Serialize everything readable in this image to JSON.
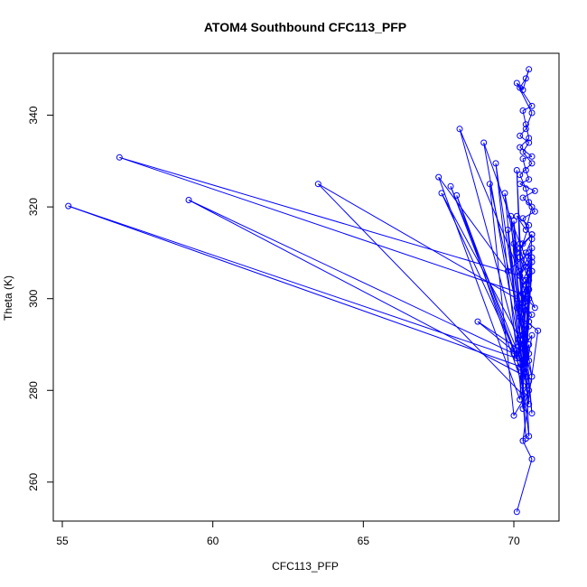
{
  "chart_data": {
    "type": "line",
    "title": "ATOM4 Southbound CFC113_PFP",
    "xlabel": "CFC113_PFP",
    "ylabel": "Theta (K)",
    "xlim": [
      54.7,
      71.5
    ],
    "ylim": [
      251.5,
      353.5
    ],
    "x_ticks": [
      55,
      60,
      65,
      70
    ],
    "y_ticks": [
      260,
      280,
      300,
      320,
      340
    ],
    "markers": "open-circle",
    "line_color": "#0000ff",
    "grid": false,
    "series": [
      {
        "x": [
          70.1,
          70.6,
          70.3,
          70.8,
          70.2,
          70.5,
          70.4,
          70.7,
          70.3,
          70.6,
          70.2,
          70.5,
          70.4,
          70.2,
          70.6,
          70.3,
          70.5,
          70.1,
          70.4,
          70.6,
          70.3,
          70.7,
          70.2,
          70.5,
          70.4,
          70.3,
          70.6,
          70.2,
          70.5,
          70.4,
          70.3,
          70.6,
          70.2,
          70.4,
          70.5,
          70.3,
          70.1,
          70.6,
          70.4,
          70.2,
          70.5,
          70.3,
          70.6,
          70.2,
          70.4,
          70.5,
          70.7,
          70.3,
          70.6,
          70.4,
          70.2,
          70.5,
          70.3,
          70.6,
          70.4,
          70.2,
          70.5,
          70.3,
          55.2,
          70.1,
          70.5,
          70.3,
          56.9,
          70.2,
          70.6,
          70.4,
          59.2,
          70.0,
          70.5,
          70.3,
          63.5,
          70.1,
          70.4,
          70.2,
          67.5,
          69.8,
          70.5,
          70.3,
          67.6,
          70.1,
          70.6,
          70.4,
          67.9,
          70.2,
          70.5,
          70.3,
          68.1,
          70.0,
          70.5,
          70.3,
          68.2,
          70.3,
          70.6,
          70.4,
          68.8,
          70.1,
          70.5,
          70.3,
          69.0,
          70.2,
          70.6,
          70.4,
          69.2,
          70.0,
          70.5,
          70.3,
          69.4,
          70.1,
          70.5,
          70.3,
          69.7,
          70.2,
          70.6,
          70.4,
          69.8,
          70.3,
          70.5,
          70.2,
          69.9,
          70.1,
          70.6,
          70.4,
          70.0,
          70.4,
          70.2,
          70.5,
          70.1,
          70.3,
          70.6,
          70.2,
          70.0,
          70.5,
          70.3,
          70.4,
          70.2,
          70.6,
          70.3,
          70.5
        ],
        "y": [
          253.5,
          265.0,
          269.0,
          293.0,
          296.0,
          300.0,
          303.0,
          298.0,
          301.0,
          306.0,
          309.0,
          304.0,
          307.0,
          311.0,
          314.0,
          312.0,
          316.0,
          318.0,
          315.0,
          320.0,
          322.0,
          323.5,
          325.0,
          326.0,
          328.0,
          330.5,
          331.0,
          333.0,
          335.0,
          338.0,
          341.0,
          342.0,
          346.0,
          348.0,
          350.0,
          345.5,
          347.0,
          340.5,
          337.0,
          335.5,
          334.0,
          332.0,
          329.5,
          327.0,
          324.0,
          321.0,
          319.0,
          317.5,
          313.0,
          310.0,
          305.0,
          302.0,
          299.0,
          296.5,
          294.0,
          291.0,
          288.0,
          285.0,
          320.2,
          287.0,
          295.0,
          301.0,
          330.8,
          305.0,
          311.0,
          283.0,
          321.5,
          288.0,
          305.5,
          279.0,
          325.0,
          300.0,
          304.0,
          278.0,
          326.5,
          306.0,
          310.0,
          290.0,
          323.0,
          287.5,
          292.0,
          284.0,
          324.5,
          285.0,
          290.0,
          281.0,
          322.5,
          289.0,
          294.0,
          286.0,
          337.0,
          304.0,
          308.0,
          288.0,
          295.0,
          288.0,
          300.0,
          285.0,
          334.0,
          312.0,
          306.0,
          289.0,
          325.0,
          274.5,
          280.0,
          276.0,
          329.5,
          298.0,
          302.0,
          283.0,
          323.0,
          305.0,
          309.0,
          287.0,
          315.0,
          279.0,
          282.0,
          292.0,
          318.0,
          310.0,
          314.0,
          291.0,
          317.0,
          269.5,
          287.0,
          270.0,
          328.0,
          290.0,
          283.0,
          299.0,
          312.0,
          277.0,
          286.0,
          300.0,
          306.0,
          275.0,
          292.0,
          286.5
        ]
      }
    ]
  }
}
